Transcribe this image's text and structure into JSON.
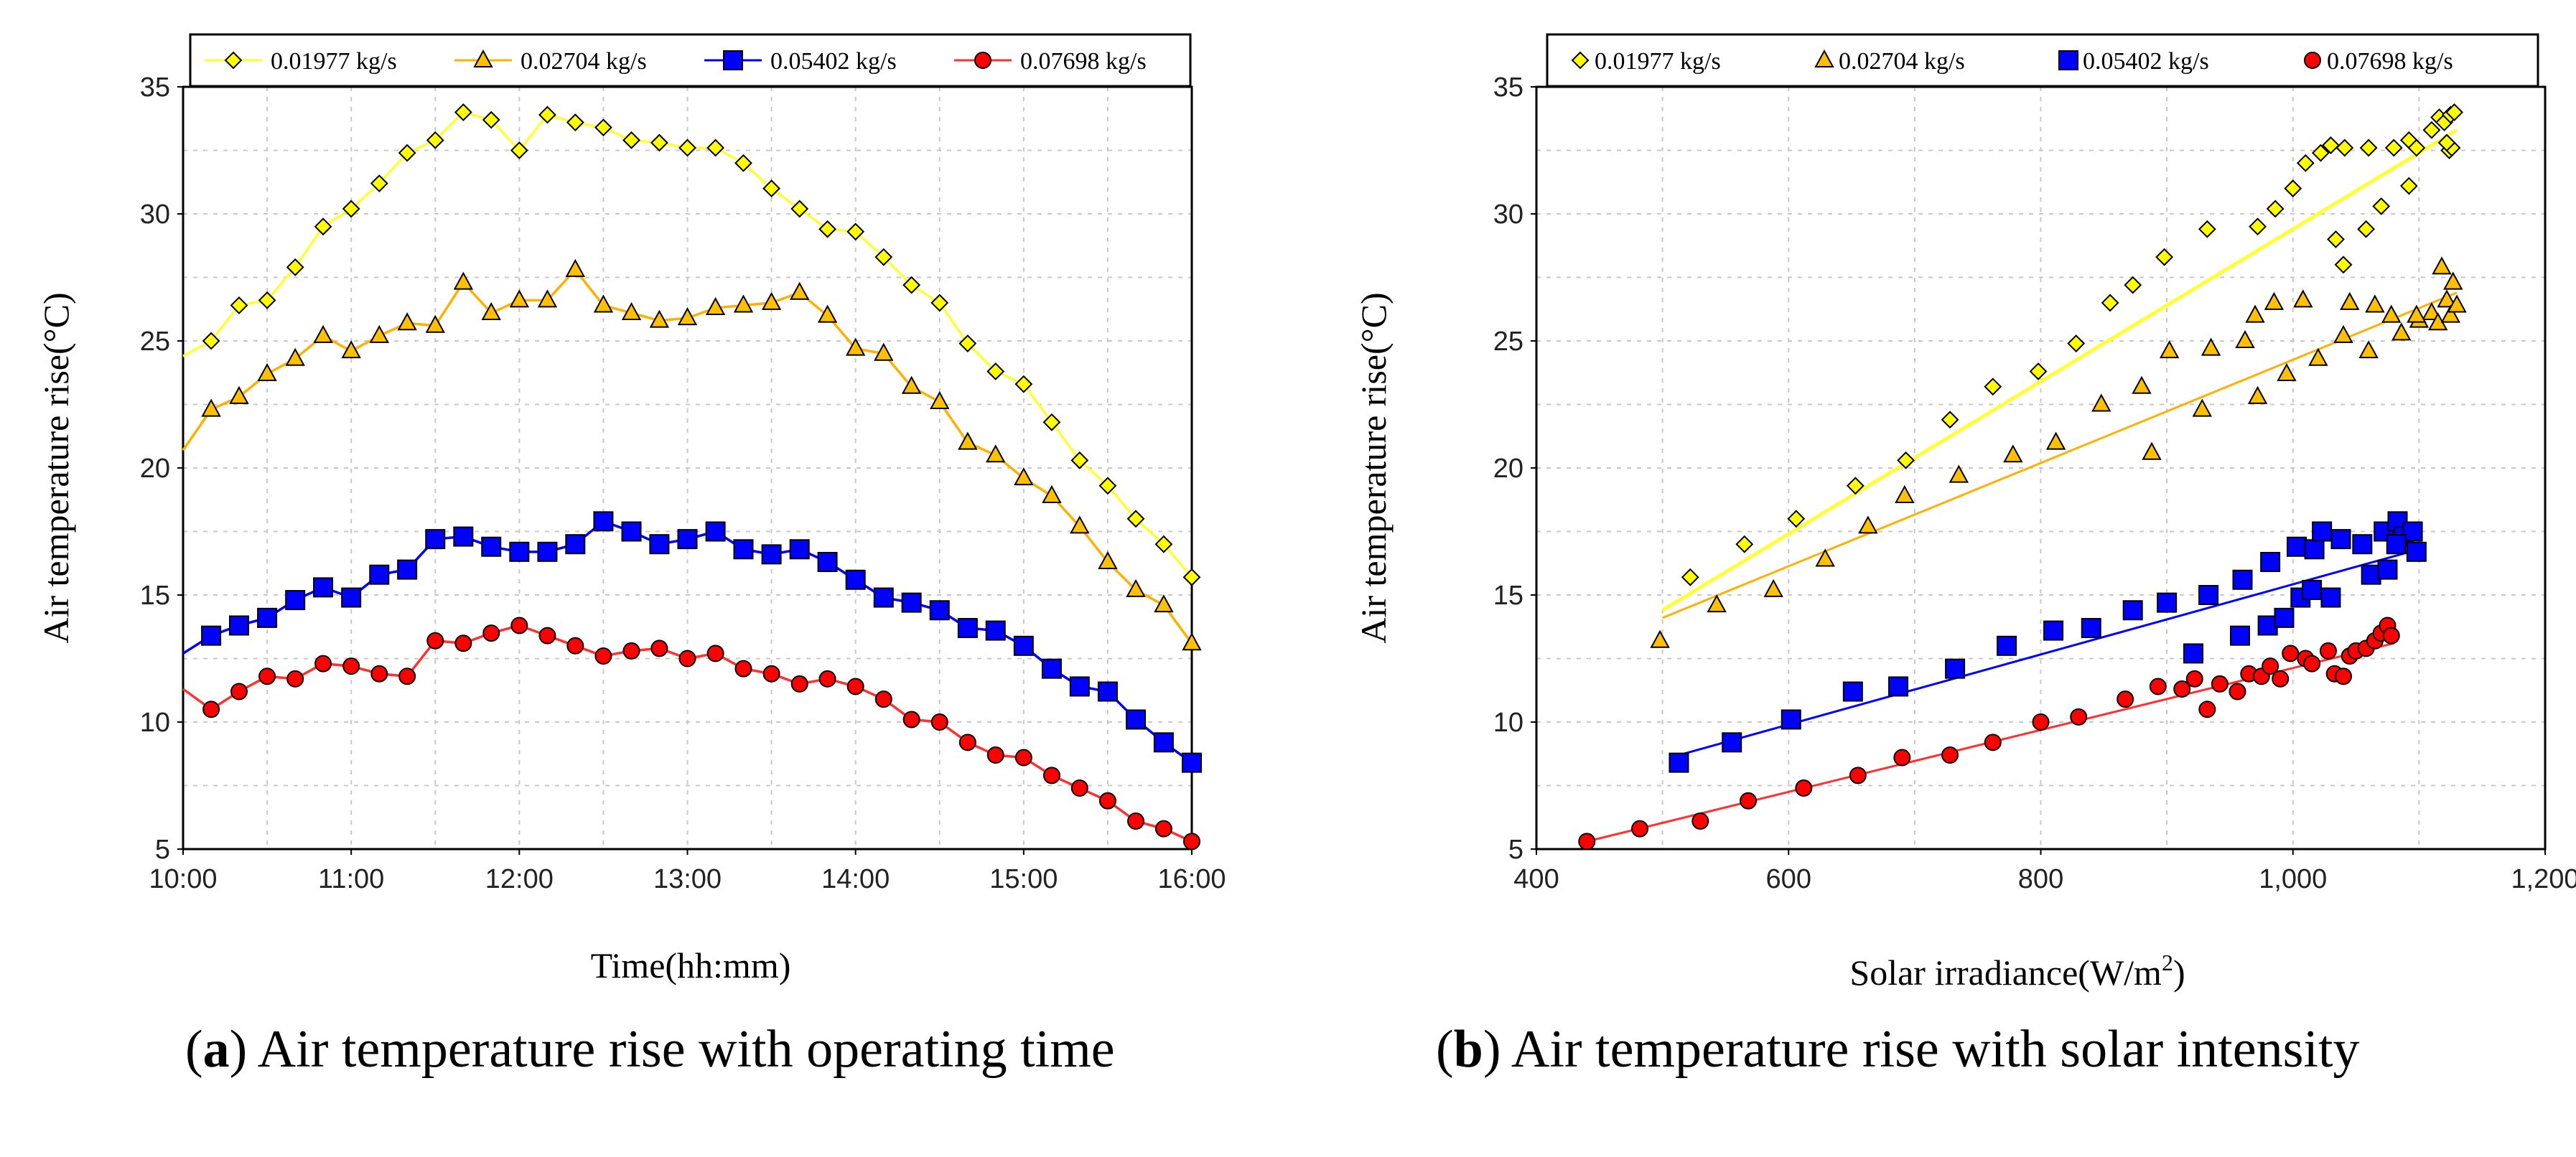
{
  "colors": {
    "s1": "#ffff00",
    "s2": "#ffc000",
    "s3": "#0000ff",
    "s4": "#ff0000",
    "s1_line": "#ffff33",
    "s2_line": "#ffb000",
    "s3_line": "#0000ff",
    "s4_line": "#ff3030"
  },
  "captions": {
    "a_letter": "a",
    "a_text": " Air temperature rise with operating time",
    "b_letter": "b",
    "b_text": " Air temperature rise with solar intensity"
  },
  "chart_data": [
    {
      "type": "line",
      "title": "",
      "xlabel": "Time(hh:mm)",
      "ylabel": "Air temperature rise(°C)",
      "x_unit": "hours",
      "xlim": [
        10,
        16
      ],
      "ylim": [
        5,
        35
      ],
      "x_ticks": [
        10,
        11,
        12,
        13,
        14,
        15,
        16
      ],
      "x_tick_labels": [
        "10:00",
        "11:00",
        "12:00",
        "13:00",
        "14:00",
        "15:00",
        "16:00"
      ],
      "y_ticks": [
        5,
        10,
        15,
        20,
        25,
        30,
        35
      ],
      "y_tick_labels": [
        "5",
        "10",
        "15",
        "20",
        "25",
        "30",
        "35"
      ],
      "grid": true,
      "legend_position": "top",
      "x": [
        10.167,
        10.333,
        10.5,
        10.667,
        10.833,
        11.0,
        11.167,
        11.333,
        11.5,
        11.667,
        11.833,
        12.0,
        12.167,
        12.333,
        12.5,
        12.667,
        12.833,
        13.0,
        13.167,
        13.333,
        13.5,
        13.667,
        13.833,
        14.0,
        14.167,
        14.333,
        14.5,
        14.667,
        14.833,
        15.0,
        15.167,
        15.333,
        15.5,
        15.667,
        15.833,
        16.0
      ],
      "series": [
        {
          "name": "0.01977 kg/s",
          "marker": "diamond",
          "start_value": 24.4,
          "values": [
            25.0,
            26.4,
            26.6,
            27.9,
            29.5,
            30.2,
            31.2,
            32.4,
            32.9,
            34.0,
            33.7,
            32.5,
            33.9,
            33.6,
            33.4,
            32.9,
            32.8,
            32.6,
            32.6,
            32.0,
            31.0,
            30.2,
            29.4,
            29.3,
            28.3,
            27.2,
            26.5,
            24.9,
            23.8,
            23.3,
            21.8,
            20.3,
            19.3,
            18.0,
            17.0,
            15.7
          ]
        },
        {
          "name": "0.02704 kg/s",
          "marker": "triangle",
          "start_value": 20.7,
          "values": [
            22.3,
            22.8,
            23.7,
            24.3,
            25.2,
            24.6,
            25.2,
            25.7,
            25.6,
            27.3,
            26.1,
            26.6,
            26.6,
            27.8,
            26.4,
            26.1,
            25.8,
            25.9,
            26.3,
            26.4,
            26.5,
            26.9,
            26.0,
            24.7,
            24.5,
            23.2,
            22.6,
            21.0,
            20.5,
            19.6,
            18.9,
            17.7,
            16.3,
            15.2,
            14.6,
            13.1
          ]
        },
        {
          "name": "0.05402 kg/s",
          "marker": "square",
          "start_value": 12.7,
          "values": [
            13.4,
            13.8,
            14.1,
            14.8,
            15.3,
            14.9,
            15.8,
            16.0,
            17.2,
            17.3,
            16.9,
            16.7,
            16.7,
            17.0,
            17.9,
            17.5,
            17.0,
            17.2,
            17.5,
            16.8,
            16.6,
            16.8,
            16.3,
            15.6,
            14.9,
            14.7,
            14.4,
            13.7,
            13.6,
            13.0,
            12.1,
            11.4,
            11.2,
            10.1,
            9.2,
            8.4
          ]
        },
        {
          "name": "0.07698 kg/s",
          "marker": "circle",
          "start_value": 11.3,
          "values": [
            10.5,
            11.2,
            11.8,
            11.7,
            12.3,
            12.2,
            11.9,
            11.8,
            13.2,
            13.1,
            13.5,
            13.8,
            13.4,
            13.0,
            12.6,
            12.8,
            12.9,
            12.5,
            12.7,
            12.1,
            11.9,
            11.5,
            11.7,
            11.4,
            10.9,
            10.1,
            10.0,
            9.2,
            8.7,
            8.6,
            7.9,
            7.4,
            6.9,
            6.1,
            5.8,
            5.3
          ]
        }
      ]
    },
    {
      "type": "scatter",
      "title": "",
      "xlabel": "Solar irradiance(W/m",
      "xlabel_sup": "2",
      "xlabel_end": ")",
      "ylabel": "Air temperature rise(°C)",
      "xlim": [
        400,
        1200
      ],
      "ylim": [
        5,
        35
      ],
      "x_ticks": [
        400,
        600,
        800,
        1000,
        1200
      ],
      "x_tick_labels": [
        "400",
        "600",
        "800",
        "1,000",
        "1,200"
      ],
      "y_ticks": [
        5,
        10,
        15,
        20,
        25,
        30,
        35
      ],
      "y_tick_labels": [
        "5",
        "10",
        "15",
        "20",
        "25",
        "30",
        "35"
      ],
      "grid": true,
      "legend_position": "top",
      "series": [
        {
          "name": "0.01977 kg/s",
          "marker": "diamond",
          "points": [
            [
              522,
              15.7
            ],
            [
              565,
              17.0
            ],
            [
              606,
              18.0
            ],
            [
              653,
              19.3
            ],
            [
              693,
              20.3
            ],
            [
              728,
              21.9
            ],
            [
              762,
              23.2
            ],
            [
              798,
              23.8
            ],
            [
              828,
              24.9
            ],
            [
              855,
              26.5
            ],
            [
              873,
              27.2
            ],
            [
              898,
              28.3
            ],
            [
              932,
              29.4
            ],
            [
              972,
              29.5
            ],
            [
              986,
              30.2
            ],
            [
              1000,
              31.0
            ],
            [
              1010,
              32.0
            ],
            [
              1022,
              32.4
            ],
            [
              1030,
              32.7
            ],
            [
              1041,
              32.6
            ],
            [
              1060,
              32.6
            ],
            [
              1080,
              32.6
            ],
            [
              1092,
              32.9
            ],
            [
              1098,
              32.6
            ],
            [
              1040,
              28.0
            ],
            [
              1058,
              29.4
            ],
            [
              1070,
              30.3
            ],
            [
              1092,
              31.1
            ],
            [
              1110,
              33.3
            ],
            [
              1116,
              33.8
            ],
            [
              1120,
              33.6
            ],
            [
              1125,
              33.9
            ],
            [
              1128,
              34.0
            ],
            [
              1124,
              32.5
            ],
            [
              1126,
              32.6
            ],
            [
              1122,
              32.8
            ],
            [
              1034,
              29.0
            ]
          ],
          "fit": [
            [
              500,
              14.4
            ],
            [
              1130,
              33.3
            ]
          ]
        },
        {
          "name": "0.02704 kg/s",
          "marker": "triangle",
          "points": [
            [
              498,
              13.2
            ],
            [
              543,
              14.6
            ],
            [
              588,
              15.2
            ],
            [
              629,
              16.4
            ],
            [
              663,
              17.7
            ],
            [
              692,
              18.9
            ],
            [
              735,
              19.7
            ],
            [
              778,
              20.5
            ],
            [
              812,
              21.0
            ],
            [
              848,
              22.5
            ],
            [
              880,
              23.2
            ],
            [
              888,
              20.6
            ],
            [
              902,
              24.6
            ],
            [
              928,
              22.3
            ],
            [
              935,
              24.7
            ],
            [
              962,
              25.0
            ],
            [
              970,
              26.0
            ],
            [
              972,
              22.8
            ],
            [
              985,
              26.5
            ],
            [
              995,
              23.7
            ],
            [
              1008,
              26.6
            ],
            [
              1020,
              24.3
            ],
            [
              1040,
              25.2
            ],
            [
              1045,
              26.5
            ],
            [
              1060,
              24.6
            ],
            [
              1065,
              26.4
            ],
            [
              1078,
              26.0
            ],
            [
              1086,
              25.3
            ],
            [
              1100,
              25.8
            ],
            [
              1110,
              26.1
            ],
            [
              1115,
              25.7
            ],
            [
              1118,
              27.9
            ],
            [
              1122,
              26.6
            ],
            [
              1125,
              26.0
            ],
            [
              1127,
              27.3
            ],
            [
              1130,
              26.4
            ],
            [
              1098,
              26.0
            ]
          ],
          "fit": [
            [
              500,
              14.1
            ],
            [
              1130,
              26.9
            ]
          ]
        },
        {
          "name": "0.05402 kg/s",
          "marker": "square",
          "points": [
            [
              513,
              8.4
            ],
            [
              555,
              9.2
            ],
            [
              602,
              10.1
            ],
            [
              651,
              11.2
            ],
            [
              687,
              11.4
            ],
            [
              732,
              12.1
            ],
            [
              773,
              13.0
            ],
            [
              810,
              13.6
            ],
            [
              840,
              13.7
            ],
            [
              873,
              14.4
            ],
            [
              900,
              14.7
            ],
            [
              921,
              12.7
            ],
            [
              933,
              15.0
            ],
            [
              958,
              13.4
            ],
            [
              960,
              15.6
            ],
            [
              980,
              13.8
            ],
            [
              982,
              16.3
            ],
            [
              993,
              14.1
            ],
            [
              1003,
              16.9
            ],
            [
              1006,
              14.9
            ],
            [
              1015,
              15.2
            ],
            [
              1017,
              16.8
            ],
            [
              1023,
              17.5
            ],
            [
              1030,
              14.9
            ],
            [
              1038,
              17.2
            ],
            [
              1055,
              17.0
            ],
            [
              1062,
              15.8
            ],
            [
              1072,
              17.5
            ],
            [
              1075,
              16.0
            ],
            [
              1083,
              17.9
            ],
            [
              1088,
              17.3
            ],
            [
              1095,
              17.5
            ],
            [
              1098,
              16.7
            ],
            [
              1082,
              17.0
            ]
          ],
          "fit": [
            [
              513,
              8.7
            ],
            [
              1100,
              16.8
            ]
          ]
        },
        {
          "name": "0.07698 kg/s",
          "marker": "circle",
          "points": [
            [
              440,
              5.3
            ],
            [
              482,
              5.8
            ],
            [
              530,
              6.1
            ],
            [
              568,
              6.9
            ],
            [
              612,
              7.4
            ],
            [
              655,
              7.9
            ],
            [
              690,
              8.6
            ],
            [
              728,
              8.7
            ],
            [
              762,
              9.2
            ],
            [
              800,
              10.0
            ],
            [
              830,
              10.2
            ],
            [
              867,
              10.9
            ],
            [
              893,
              11.4
            ],
            [
              912,
              11.3
            ],
            [
              922,
              11.7
            ],
            [
              932,
              10.5
            ],
            [
              942,
              11.5
            ],
            [
              956,
              11.2
            ],
            [
              965,
              11.9
            ],
            [
              975,
              11.8
            ],
            [
              982,
              12.2
            ],
            [
              990,
              11.7
            ],
            [
              998,
              12.7
            ],
            [
              1010,
              12.5
            ],
            [
              1015,
              12.3
            ],
            [
              1028,
              12.8
            ],
            [
              1033,
              11.9
            ],
            [
              1040,
              11.8
            ],
            [
              1045,
              12.6
            ],
            [
              1050,
              12.8
            ],
            [
              1058,
              12.9
            ],
            [
              1065,
              13.2
            ],
            [
              1070,
              13.5
            ],
            [
              1075,
              13.8
            ],
            [
              1078,
              13.4
            ]
          ],
          "fit": [
            [
              440,
              5.3
            ],
            [
              1080,
              13.1
            ]
          ]
        }
      ]
    }
  ]
}
